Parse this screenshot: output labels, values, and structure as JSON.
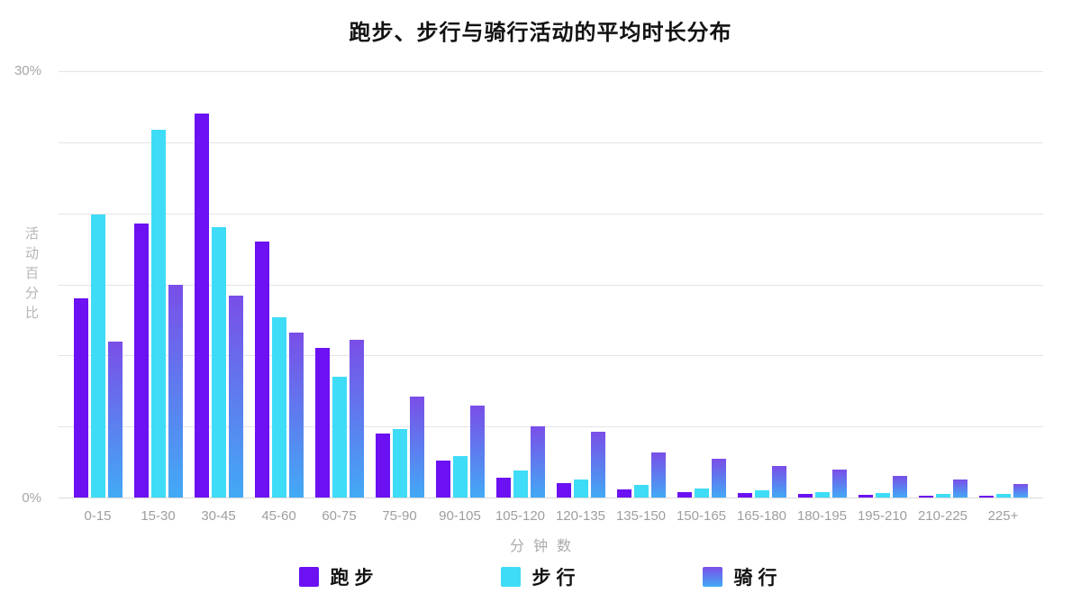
{
  "chart_data": {
    "type": "bar",
    "title": "跑步、步行与骑行活动的平均时长分布",
    "xlabel": "分钟数",
    "ylabel": "活动百分比",
    "ylim": [
      0,
      30
    ],
    "gridline_step": 5,
    "grid": "horizontal",
    "legend_position": "bottom",
    "y_tick_labels_shown": [
      "30%",
      "0%"
    ],
    "categories": [
      "0-15",
      "15-30",
      "30-45",
      "45-60",
      "60-75",
      "75-90",
      "90-105",
      "105-120",
      "120-135",
      "135-150",
      "150-165",
      "165-180",
      "180-195",
      "195-210",
      "210-225",
      "225+"
    ],
    "series": [
      {
        "name": "跑步",
        "color": "#6b11f2",
        "values": [
          14.0,
          19.3,
          27.0,
          18.0,
          10.5,
          4.5,
          2.6,
          1.4,
          1.0,
          0.55,
          0.4,
          0.3,
          0.25,
          0.2,
          0.15,
          0.12
        ]
      },
      {
        "name": "步行",
        "color": "#3edcf6",
        "values": [
          19.9,
          25.9,
          19.0,
          12.7,
          8.5,
          4.8,
          2.9,
          1.9,
          1.3,
          0.9,
          0.65,
          0.5,
          0.4,
          0.3,
          0.27,
          0.25
        ]
      },
      {
        "name": "骑行",
        "color_gradient": [
          "#7a4ee8",
          "#42aaf5"
        ],
        "values": [
          11.0,
          15.0,
          14.2,
          11.6,
          11.1,
          7.1,
          6.5,
          5.0,
          4.6,
          3.2,
          2.7,
          2.25,
          1.95,
          1.5,
          1.25,
          0.95
        ]
      }
    ]
  },
  "colors": {
    "grid_line": "#e4e4e4",
    "baseline": "#d9d9d9",
    "axis_text": "#9e9e9e",
    "title_text": "#121212",
    "background": "#ffffff"
  }
}
